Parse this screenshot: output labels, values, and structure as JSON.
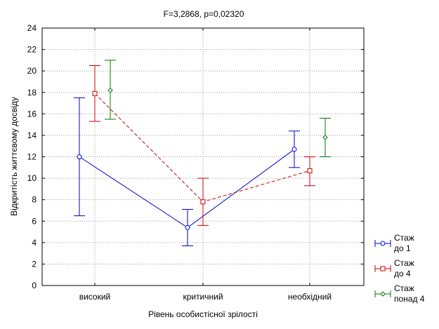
{
  "chart_data": {
    "type": "line",
    "title": "F=3,2868, p=0,02320",
    "xlabel": "Рівень особистісної зрілості",
    "ylabel": "Відкритість життєвому досвіду",
    "categories": [
      "високий",
      "критичний",
      "необхідний"
    ],
    "ylim": [
      0,
      24
    ],
    "yticks": [
      0,
      2,
      4,
      6,
      8,
      10,
      12,
      14,
      16,
      18,
      20,
      22,
      24
    ],
    "grid": true,
    "legend_position": "bottom-right",
    "series": [
      {
        "name": "Стаж до 1",
        "name_lines": [
          "Стаж",
          "до 1"
        ],
        "color": "#0000cc",
        "marker": "circle",
        "line_style": "solid",
        "values": [
          12.0,
          5.4,
          12.7
        ],
        "error_low": [
          6.5,
          3.7,
          11.0
        ],
        "error_high": [
          17.5,
          7.1,
          14.4
        ]
      },
      {
        "name": "Стаж до 4",
        "name_lines": [
          "Стаж",
          "до 4"
        ],
        "color": "#cc0000",
        "marker": "square",
        "line_style": "dashed",
        "values": [
          17.9,
          7.8,
          10.7
        ],
        "error_low": [
          15.3,
          5.6,
          9.3
        ],
        "error_high": [
          20.5,
          10.0,
          12.0
        ]
      },
      {
        "name": "Стаж понад 4",
        "name_lines": [
          "Стаж",
          "понад 4"
        ],
        "color": "#007700",
        "marker": "diamond",
        "line_style": "none",
        "values": [
          18.2,
          null,
          13.8
        ],
        "error_low": [
          15.5,
          null,
          12.0
        ],
        "error_high": [
          21.0,
          null,
          15.6
        ]
      }
    ]
  }
}
